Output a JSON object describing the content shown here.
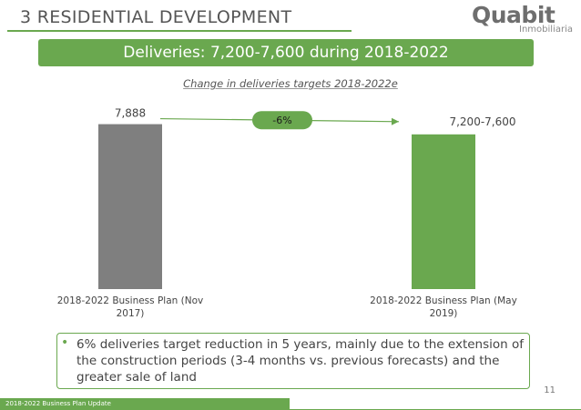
{
  "header": {
    "section_title": "3 RESIDENTIAL DEVELOPMENT",
    "logo_main": "Quabit",
    "logo_sub": "Inmobiliaria"
  },
  "banner": {
    "text": "Deliveries: 7,200-7,600 during 2018-2022"
  },
  "chart_data": {
    "type": "bar",
    "title": "Change in deliveries targets 2018-2022e",
    "categories": [
      "2018-2022 Business Plan (Nov 2017)",
      "2018-2022 Business Plan (May 2019)"
    ],
    "category_lines": [
      [
        "2018-2022 Business Plan (Nov",
        "2017)"
      ],
      [
        "2018-2022 Business Plan (May",
        "2019)"
      ]
    ],
    "values": [
      7888,
      7400
    ],
    "data_labels": [
      "7,888",
      "7,200-7,600"
    ],
    "bar_colors": [
      "#7f7f7f",
      "#6aa84f"
    ],
    "annotation": "-6%",
    "ylim": [
      0,
      8000
    ],
    "xlabel": "",
    "ylabel": ""
  },
  "bullet": {
    "text": "6% deliveries target reduction in 5 years, mainly due to the extension of the construction periods (3-4 months vs. previous forecasts) and the greater sale of land"
  },
  "footer": {
    "text": "2018-2022 Business Plan Update",
    "page_number": "11"
  },
  "colors": {
    "accent": "#6aa84f",
    "gray_bar": "#7f7f7f",
    "text": "#444444"
  }
}
